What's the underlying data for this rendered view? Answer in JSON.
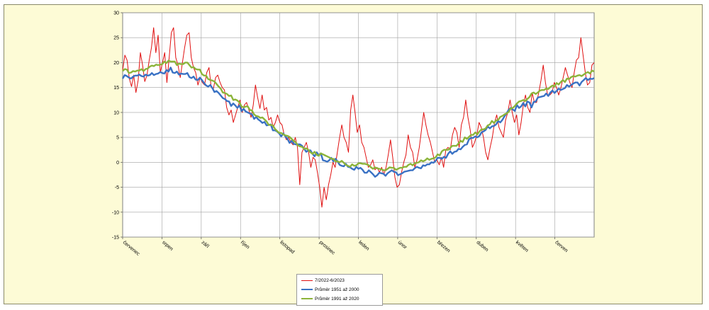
{
  "colors": {
    "background": "#fdfbd6",
    "plot_area": "#ffffff",
    "gridline": "#a0a0a0"
  },
  "chart_data": {
    "type": "line",
    "title": "",
    "xlabel": "",
    "ylabel": "",
    "ylim": [
      -15,
      30
    ],
    "y_ticks": [
      -15,
      -10,
      -5,
      0,
      5,
      10,
      15,
      20,
      25,
      30
    ],
    "month_labels": [
      "červenec",
      "srpen",
      "září",
      "říjen",
      "listopad",
      "prosinec",
      "leden",
      "únor",
      "březen",
      "duben",
      "květen",
      "červen"
    ],
    "grid": true,
    "legend_position": "bottom",
    "series": [
      {
        "name": "7/2022-6/2023",
        "color": "#e01010",
        "line_width": 1,
        "values": [
          18.5,
          21.5,
          20.5,
          16.8,
          15.2,
          17.5,
          14,
          16.5,
          22,
          19.5,
          16.2,
          17.5,
          20.5,
          23,
          27,
          22,
          25.5,
          18,
          20,
          22,
          16,
          21,
          26,
          27,
          21,
          19.5,
          17,
          20,
          23,
          25.5,
          26,
          21,
          19,
          18,
          15.5,
          17,
          16,
          15.5,
          18,
          19,
          15,
          14.8,
          17,
          17.5,
          16,
          15,
          14.5,
          11,
          9.5,
          10.5,
          8,
          9.5,
          11,
          12.5,
          10,
          11.5,
          12,
          10.5,
          9,
          11.5,
          15.5,
          13,
          10.8,
          13.5,
          10.5,
          11,
          8.5,
          9,
          7,
          8,
          9.5,
          8,
          7.5,
          5.5,
          4.5,
          5,
          4,
          3.5,
          5,
          3,
          -4.5,
          2,
          3,
          4,
          2,
          -1,
          1,
          0.5,
          -2,
          -5,
          -9,
          -5,
          -7.5,
          -4.5,
          -2.5,
          0,
          -1,
          2,
          5,
          7.5,
          5,
          4,
          2,
          10.5,
          13.5,
          10,
          6,
          7.5,
          4,
          3,
          1,
          -1,
          -0.5,
          0.5,
          -1.5,
          -1,
          -2,
          -1,
          -2.5,
          -1,
          1.5,
          4.5,
          1,
          -3,
          -5,
          -4.5,
          -2,
          0,
          1.5,
          5.5,
          3,
          2,
          -1,
          0.5,
          3,
          6.5,
          10,
          7.5,
          5.5,
          4,
          2,
          0,
          0.5,
          -0.5,
          1,
          -1,
          2.5,
          3,
          2.5,
          5.5,
          7,
          6,
          3,
          7.5,
          9,
          12.5,
          9,
          6.5,
          3,
          4,
          5.5,
          8,
          7,
          5,
          2,
          0.5,
          3,
          5,
          8,
          9.5,
          7,
          6,
          5,
          8.5,
          10,
          12.5,
          10,
          8,
          9.5,
          5.5,
          8,
          11.5,
          13.5,
          11,
          10,
          14,
          12,
          12,
          14,
          16.5,
          19.5,
          16,
          13.5,
          13.5,
          14,
          16,
          15,
          13.5,
          15,
          17,
          19,
          17.5,
          16,
          15,
          18,
          20.5,
          21,
          25,
          21.5,
          18,
          15.5,
          16,
          19.5,
          20
        ]
      },
      {
        "name": "Průměr 1951 až 2000",
        "color": "#3a72c4",
        "line_width": 2.4,
        "values": [
          16.8,
          17.5,
          17.3,
          17.0,
          16.8,
          17.2,
          17.4,
          17.4,
          17.6,
          17.3,
          17.2,
          17.6,
          17.4,
          17.5,
          17.9,
          17.5,
          17.7,
          17.8,
          18.1,
          17.9,
          17.8,
          18.5,
          18.2,
          19.0,
          18.0,
          17.9,
          18.2,
          17.6,
          17.8,
          17.7,
          17.7,
          17.9,
          17.1,
          16.9,
          17.2,
          16.6,
          16.5,
          17.0,
          16.5,
          15.9,
          15.4,
          15.2,
          15.5,
          14.9,
          14.1,
          14.3,
          13.9,
          13.4,
          12.9,
          12.7,
          12.3,
          12.2,
          11.3,
          11.8,
          11.4,
          10.9,
          11.4,
          10.3,
          10.7,
          10.2,
          10.0,
          9.8,
          9.6,
          8.7,
          9.1,
          8.6,
          8.3,
          7.9,
          8.1,
          7.4,
          7.5,
          7.6,
          6.4,
          6.4,
          6.2,
          5.8,
          5.2,
          5.8,
          5.2,
          4.7,
          3.9,
          4.3,
          3.7,
          3.6,
          3.6,
          3.6,
          3.3,
          2.7,
          2.1,
          2.4,
          2.4,
          1.7,
          1.2,
          2.0,
          1.4,
          1.8,
          0.4,
          0.3,
          0.1,
          0.4,
          0.9,
          0.2,
          0.7,
          0.2,
          -0.5,
          -0.7,
          -0.8,
          -0.3,
          -0.9,
          -1.0,
          -1.3,
          -1.5,
          -0.9,
          -1.3,
          -1.1,
          -1.5,
          -2.1,
          -2.1,
          -1.6,
          -2.0,
          -2.4,
          -2.9,
          -2.6,
          -2.1,
          -2.2,
          -2.3,
          -2.7,
          -2.2,
          -1.9,
          -1.6,
          -1.9,
          -2.0,
          -2.6,
          -2.4,
          -2.2,
          -1.9,
          -1.8,
          -1.7,
          -1.6,
          -1.6,
          -1.2,
          -0.9,
          -1.1,
          -1.2,
          -0.6,
          -0.7,
          -0.4,
          -0.4,
          0.0,
          -0.1,
          0.3,
          0.9,
          0.9,
          0.7,
          1.1,
          0.9,
          1.7,
          2.2,
          1.7,
          2.1,
          2.2,
          2.7,
          2.6,
          3.1,
          3.5,
          3.6,
          4.6,
          4.9,
          4.9,
          5.2,
          5.0,
          5.3,
          6.0,
          6.2,
          6.5,
          7.2,
          6.8,
          7.2,
          7.3,
          7.6,
          8.3,
          8.0,
          8.5,
          9.2,
          9.8,
          10.5,
          10.9,
          10.6,
          10.3,
          11.5,
          10.9,
          11.2,
          11.9,
          11.2,
          12.2,
          12.0,
          11.0,
          12.1,
          12.2,
          13.0,
          13.1,
          13.2,
          13.3,
          13.8,
          13.3,
          14.0,
          14.4,
          13.9,
          14.3,
          14.8,
          14.5,
          14.7,
          14.9,
          15.5,
          15.2,
          15.5,
          15.8,
          16.0,
          16.0,
          15.4,
          16.1,
          16.5,
          16.9,
          16.5,
          16.8,
          16.7,
          16.9
        ]
      },
      {
        "name": "Průměr 1991 až 2020",
        "color": "#8cb43a",
        "line_width": 2.4,
        "values": [
          18.3,
          18.7,
          18.6,
          17.9,
          18.0,
          18.3,
          18.2,
          18.4,
          18.4,
          18.7,
          18.3,
          18.7,
          18.8,
          19.2,
          19.4,
          19.3,
          19.6,
          19.5,
          19.6,
          19.7,
          20.2,
          19.9,
          20.4,
          20.2,
          20.2,
          20.2,
          19.5,
          19.8,
          19.7,
          19.7,
          20.0,
          20.0,
          19.5,
          19.0,
          19.1,
          18.7,
          18.6,
          18.6,
          17.7,
          17.4,
          17.4,
          16.7,
          16.5,
          16.4,
          16.2,
          15.7,
          15.2,
          14.8,
          14.0,
          13.9,
          13.7,
          13.3,
          13.4,
          12.5,
          12.6,
          12.4,
          12.0,
          11.2,
          11.0,
          11.2,
          11.2,
          10.5,
          10.4,
          9.6,
          9.3,
          9.2,
          8.9,
          9.0,
          8.6,
          8.2,
          7.5,
          7.5,
          7.4,
          6.7,
          6.3,
          5.9,
          5.9,
          5.6,
          5.4,
          5.3,
          5.1,
          4.7,
          4.3,
          4.0,
          3.4,
          3.2,
          3.1,
          2.7,
          2.8,
          2.5,
          2.0,
          1.7,
          2.1,
          1.5,
          1.3,
          1.8,
          1.6,
          1.4,
          1.2,
          1.0,
          0.7,
          0.7,
          0.2,
          0.2,
          0.0,
          0.3,
          -0.1,
          -0.5,
          -0.7,
          -0.9,
          -0.4,
          -0.7,
          -0.6,
          -0.2,
          -0.2,
          -0.3,
          -0.3,
          -0.4,
          -0.6,
          -1.0,
          -1.3,
          -1.0,
          -1.2,
          -1.3,
          -1.4,
          -1.6,
          -1.6,
          -1.3,
          -1.0,
          -1.1,
          -1.1,
          -1.5,
          -1.3,
          -1.1,
          -1.1,
          -0.9,
          -0.9,
          -0.5,
          -0.3,
          -0.6,
          -0.2,
          -0.1,
          0.0,
          0.4,
          0.2,
          0.4,
          0.8,
          0.5,
          0.7,
          0.8,
          1.0,
          1.6,
          1.4,
          2.2,
          2.5,
          2.5,
          2.5,
          2.9,
          3.3,
          3.3,
          3.3,
          3.8,
          4.3,
          4.1,
          5.0,
          4.7,
          5.1,
          5.5,
          5.5,
          6.0,
          5.6,
          6.2,
          6.6,
          6.6,
          6.8,
          7.4,
          7.6,
          8.3,
          7.9,
          8.4,
          8.5,
          9.1,
          9.3,
          9.6,
          9.8,
          10.1,
          10.8,
          10.9,
          11.3,
          11.8,
          12.2,
          12.3,
          12.5,
          12.3,
          12.7,
          13.1,
          13.8,
          14.0,
          13.7,
          14.0,
          14.4,
          14.5,
          14.5,
          14.8,
          14.7,
          15.1,
          15.4,
          15.2,
          15.9,
          15.6,
          16.1,
          16.5,
          16.1,
          16.8,
          16.7,
          17.1,
          17.3,
          17.2,
          17.4,
          17.5,
          17.3,
          17.6,
          17.9,
          18.1,
          17.8,
          18.4,
          18.2
        ]
      }
    ]
  }
}
